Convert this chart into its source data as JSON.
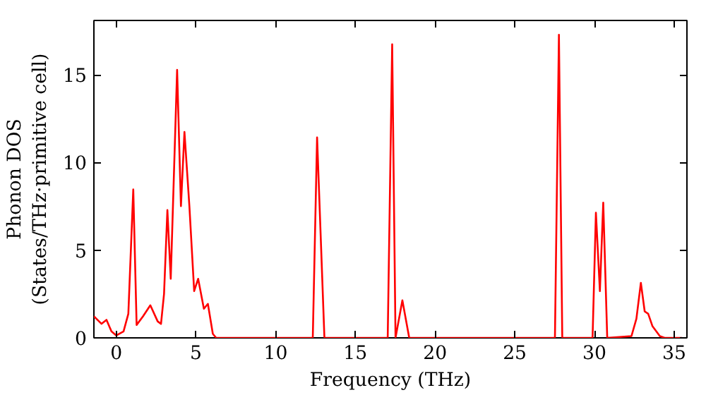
{
  "chart_data": {
    "type": "line",
    "xlabel": "Frequency (THz)",
    "ylabel": "Phonon DOS\n(States/THz·primitive cell)",
    "series": [
      {
        "color": "#ff0000",
        "x": [
          -1.4,
          -0.92,
          -0.61,
          -0.3,
          0,
          0.46,
          0.76,
          1.07,
          1.28,
          1.68,
          2.14,
          2.6,
          2.81,
          3.0,
          3.21,
          3.42,
          3.82,
          4.06,
          4.28,
          4.59,
          4.89,
          5.14,
          5.5,
          5.75,
          6.06,
          6.27,
          12.33,
          12.6,
          13.06,
          17.03,
          17.31,
          17.52,
          17.95,
          18.38,
          27.52,
          27.77,
          27.98,
          29.88,
          30.09,
          30.34,
          30.55,
          30.8,
          32.32,
          32.63,
          32.91,
          33.15,
          33.37,
          33.64,
          34.1,
          34.4,
          35.5
        ],
        "values": [
          1.23,
          0.8,
          1.03,
          0.37,
          0.14,
          0.37,
          1.37,
          8.46,
          0.74,
          1.23,
          1.86,
          0.94,
          0.8,
          2.51,
          7.29,
          3.37,
          15.28,
          7.51,
          11.74,
          7.51,
          2.67,
          3.37,
          1.66,
          1.94,
          0.23,
          0,
          0,
          11.43,
          0,
          0,
          16.74,
          0,
          2.14,
          0,
          0,
          17.28,
          0,
          0,
          7.14,
          2.67,
          7.71,
          0,
          0.1,
          1.09,
          3.14,
          1.51,
          1.37,
          0.66,
          0.1,
          0,
          0
        ]
      }
    ],
    "xlim": [
      -1.4,
      35.8
    ],
    "ylim": [
      0,
      18.1
    ],
    "xticks": [
      0,
      5,
      10,
      15,
      20,
      25,
      30,
      35
    ],
    "yticks": [
      0,
      5,
      10,
      15
    ],
    "grid": false,
    "marker": "none",
    "line_style": "solid"
  }
}
